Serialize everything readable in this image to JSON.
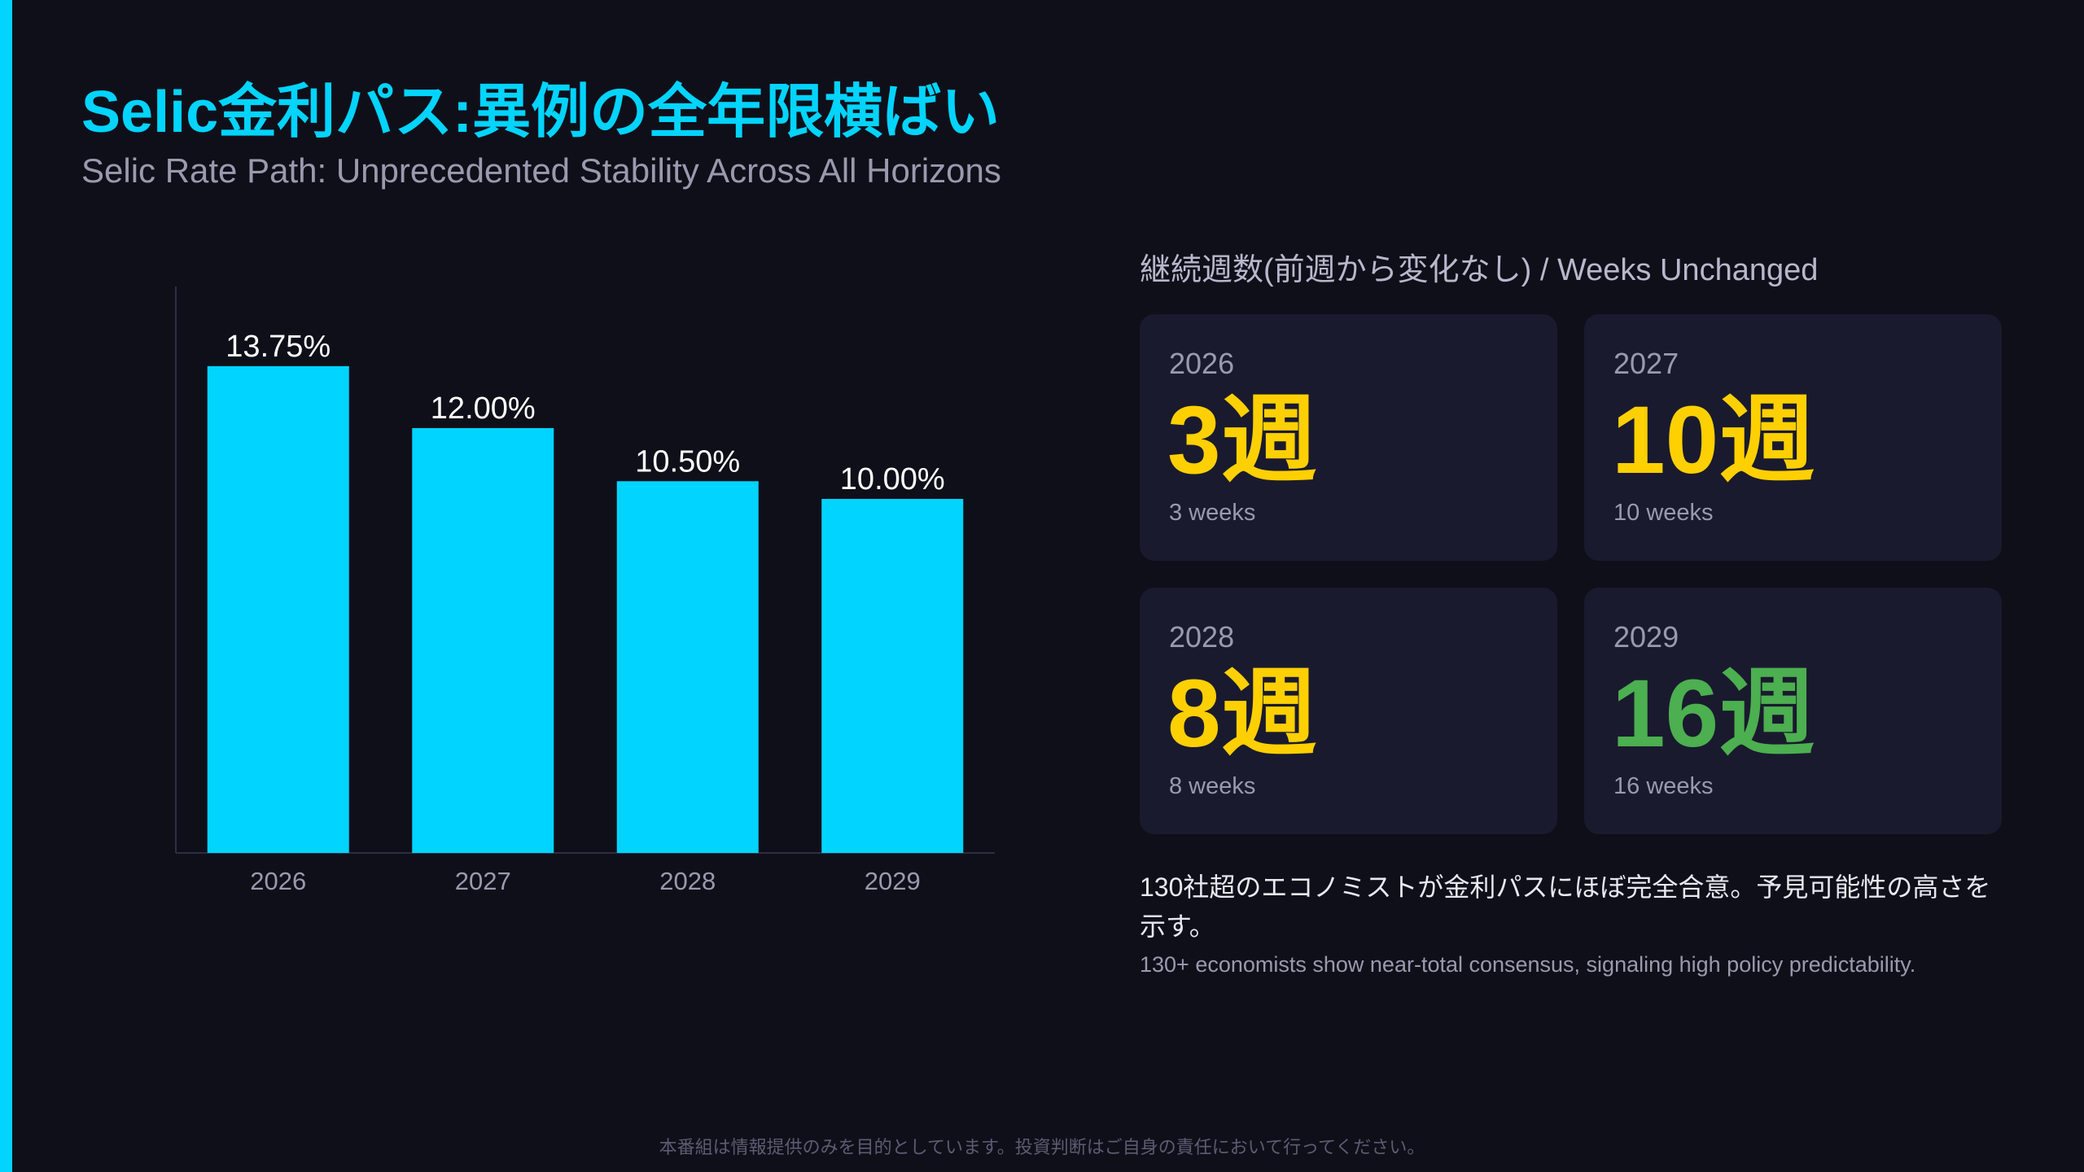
{
  "header": {
    "title": "Selic金利パス:異例の全年限横ばい",
    "subtitle": "Selic Rate Path: Unprecedented Stability Across All Horizons"
  },
  "chart_data": {
    "type": "bar",
    "categories": [
      "2026",
      "2027",
      "2028",
      "2029"
    ],
    "values": [
      13.75,
      12.0,
      10.5,
      10.0
    ],
    "data_labels": [
      "13.75%",
      "12.00%",
      "10.50%",
      "10.00%"
    ],
    "ylim": [
      0,
      16
    ],
    "bar_color": "#00d4ff",
    "grid": false
  },
  "panel": {
    "heading": "継続週数(前週から変化なし) / Weeks Unchanged",
    "cards": [
      {
        "year": "2026",
        "value": "3週",
        "en": "3 weeks",
        "color": "#ffd000"
      },
      {
        "year": "2027",
        "value": "10週",
        "en": "10 weeks",
        "color": "#ffd000"
      },
      {
        "year": "2028",
        "value": "8週",
        "en": "8 weeks",
        "color": "#ffd000"
      },
      {
        "year": "2029",
        "value": "16週",
        "en": "16 weeks",
        "color": "#4caf50"
      }
    ],
    "note_jp": "130社超のエコノミストが金利パスにほぼ完全合意。予見可能性の高さを示す。",
    "note_en": "130+ economists show near-total consensus, signaling high policy predictability."
  },
  "footer": {
    "disclaimer": "本番組は情報提供のみを目的としています。投資判断はご自身の責任において行ってください。"
  },
  "colors": {
    "background": "#0f0f1a",
    "accent": "#00d4ff",
    "card_bg": "#1a1a2e"
  }
}
